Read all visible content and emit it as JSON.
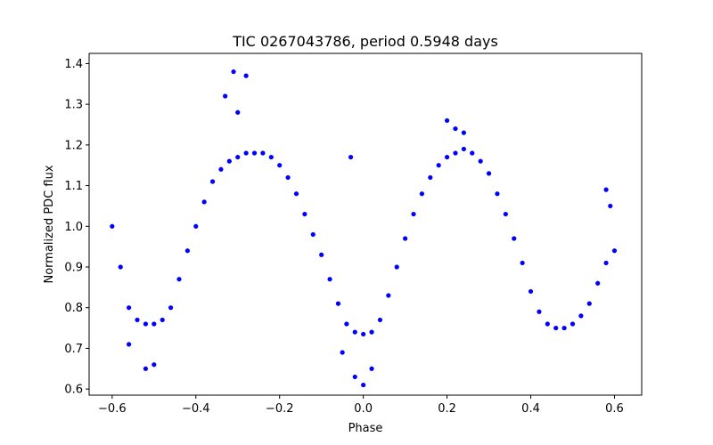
{
  "chart_data": {
    "type": "scatter",
    "title": "TIC 0267043786, period 0.5948 days",
    "xlabel": "Phase",
    "ylabel": "Normalized PDC flux",
    "xlim": [
      -0.655,
      0.665
    ],
    "ylim": [
      0.585,
      1.425
    ],
    "xticks": [
      -0.6,
      -0.4,
      -0.2,
      0.0,
      0.2,
      0.4,
      0.6
    ],
    "xtick_labels": [
      "−0.6",
      "−0.4",
      "−0.2",
      "0.0",
      "0.2",
      "0.4",
      "0.6"
    ],
    "yticks": [
      0.6,
      0.7,
      0.8,
      0.9,
      1.0,
      1.1,
      1.2,
      1.3,
      1.4
    ],
    "ytick_labels": [
      "0.6",
      "0.7",
      "0.8",
      "0.9",
      "1.0",
      "1.1",
      "1.2",
      "1.3",
      "1.4"
    ],
    "grid": false,
    "marker_color": "#0000ff",
    "series": [
      {
        "x": [
          -0.6,
          -0.58,
          -0.56,
          -0.54,
          -0.52,
          -0.5,
          -0.48,
          -0.46,
          -0.44,
          -0.42,
          -0.4,
          -0.38,
          -0.36,
          -0.34,
          -0.32,
          -0.3,
          -0.28,
          -0.26,
          -0.24,
          -0.22,
          -0.2,
          -0.18,
          -0.16,
          -0.14,
          -0.12,
          -0.1,
          -0.08,
          -0.06,
          -0.04,
          -0.02,
          0.0,
          0.02,
          0.04,
          0.06,
          0.08,
          0.1,
          0.12,
          0.14,
          0.16,
          0.18,
          0.2,
          0.22,
          0.24,
          0.26,
          0.28,
          0.3,
          0.32,
          0.34,
          0.36,
          0.38,
          0.4,
          0.42,
          0.44,
          0.46,
          0.48,
          0.5,
          0.52,
          0.54,
          0.56,
          0.58,
          0.6,
          -0.31,
          -0.33,
          -0.28,
          -0.3,
          -0.05,
          -0.03,
          -0.02,
          0.02,
          0.0,
          -0.52,
          -0.5,
          -0.56,
          0.2,
          0.24,
          0.22,
          0.58,
          0.59
        ],
        "y": [
          1.0,
          0.9,
          0.8,
          0.77,
          0.76,
          0.76,
          0.77,
          0.8,
          0.87,
          0.94,
          1.0,
          1.06,
          1.11,
          1.14,
          1.16,
          1.17,
          1.18,
          1.18,
          1.18,
          1.17,
          1.15,
          1.12,
          1.08,
          1.03,
          0.98,
          0.93,
          0.87,
          0.81,
          0.76,
          0.74,
          0.735,
          0.74,
          0.77,
          0.83,
          0.9,
          0.97,
          1.03,
          1.08,
          1.12,
          1.15,
          1.17,
          1.18,
          1.19,
          1.18,
          1.16,
          1.13,
          1.08,
          1.03,
          0.97,
          0.91,
          0.84,
          0.79,
          0.76,
          0.75,
          0.75,
          0.76,
          0.78,
          0.81,
          0.86,
          0.91,
          0.94,
          1.38,
          1.32,
          1.37,
          1.28,
          0.69,
          1.17,
          0.63,
          0.65,
          0.61,
          0.65,
          0.66,
          0.71,
          1.26,
          1.23,
          1.24,
          1.09,
          1.05
        ]
      }
    ]
  }
}
